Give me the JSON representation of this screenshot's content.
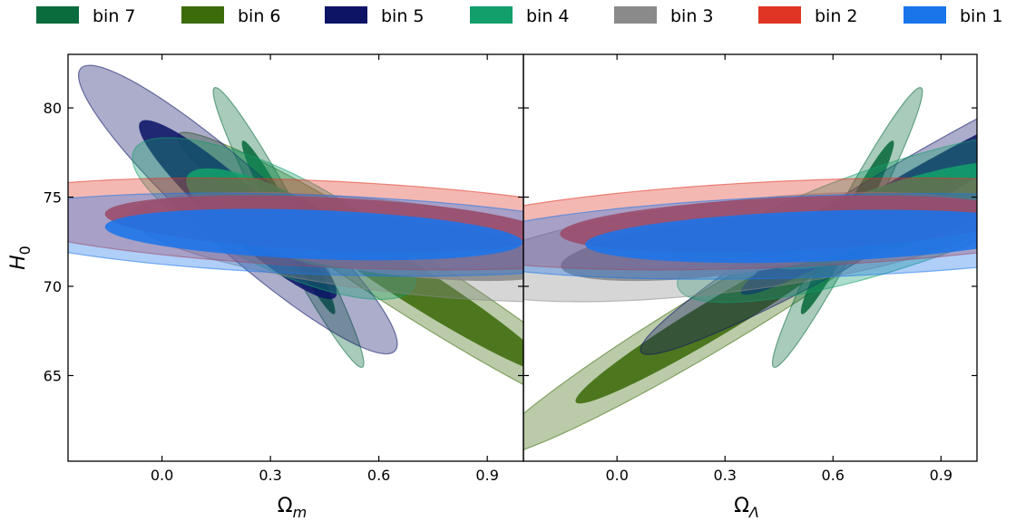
{
  "legend": [
    {
      "label": "bin 7",
      "color": "#0a6b3c"
    },
    {
      "label": "bin 6",
      "color": "#3c6b0a"
    },
    {
      "label": "bin 5",
      "color": "#0d1466"
    },
    {
      "label": "bin 4",
      "color": "#139f6c"
    },
    {
      "label": "bin 3",
      "color": "#8a8a8a"
    },
    {
      "label": "bin 2",
      "color": "#e03524"
    },
    {
      "label": "bin 1",
      "color": "#1a74ea"
    }
  ],
  "chart_data": [
    {
      "type": "contour",
      "panel": "left",
      "xlabel_main": "Ω",
      "xlabel_sub": "m",
      "ylabel_main": "H",
      "ylabel_sub": "0",
      "xlim": [
        -0.26,
        1.0
      ],
      "ylim": [
        60.2,
        83.0
      ],
      "xticks": [
        "0.0",
        "0.3",
        "0.6",
        "0.9"
      ],
      "yticks": [
        "65",
        "70",
        "75",
        "80"
      ],
      "series": [
        {
          "name": "bin 6",
          "color": "#3c6b0a",
          "cx": 0.68,
          "cy": 70.3,
          "sx": 0.26,
          "sy": 3.4,
          "rho": -0.97
        },
        {
          "name": "bin 7",
          "color": "#0a6b3c",
          "cx": 0.35,
          "cy": 73.3,
          "sx": 0.085,
          "sy": 3.2,
          "rho": -0.97
        },
        {
          "name": "bin 5",
          "color": "#0d1466",
          "cx": 0.21,
          "cy": 74.3,
          "sx": 0.18,
          "sy": 3.3,
          "rho": -0.93
        },
        {
          "name": "bin 4",
          "color": "#139f6c",
          "cx": 0.31,
          "cy": 73.8,
          "sx": 0.16,
          "sy": 1.85,
          "rho": -0.75
        },
        {
          "name": "bin 3",
          "color": "#8a8a8a",
          "cx": 0.65,
          "cy": 72.2,
          "sx": 0.3,
          "sy": 1.25,
          "rho": -0.55
        },
        {
          "name": "bin 2",
          "color": "#e03524",
          "cx": 0.45,
          "cy": 73.5,
          "sx": 0.4,
          "sy": 1.05,
          "rho": -0.35
        },
        {
          "name": "bin 1",
          "color": "#1a74ea",
          "cx": 0.42,
          "cy": 72.9,
          "sx": 0.38,
          "sy": 0.95,
          "rho": -0.3
        }
      ]
    },
    {
      "type": "contour",
      "panel": "right",
      "xlabel_main": "Ω",
      "xlabel_sub": "Λ",
      "ylabel_main": "",
      "ylabel_sub": "",
      "xlim": [
        -0.26,
        1.0
      ],
      "ylim": [
        60.2,
        83.0
      ],
      "xticks": [
        "0.0",
        "0.3",
        "0.6",
        "0.9"
      ],
      "yticks": [],
      "series": [
        {
          "name": "bin 6",
          "color": "#3c6b0a",
          "cx": 0.28,
          "cy": 68.3,
          "sx": 0.26,
          "sy": 3.2,
          "rho": 0.97
        },
        {
          "name": "bin 7",
          "color": "#0a6b3c",
          "cx": 0.64,
          "cy": 73.3,
          "sx": 0.085,
          "sy": 3.2,
          "rho": 0.97
        },
        {
          "name": "bin 5",
          "color": "#0d1466",
          "cx": 0.8,
          "cy": 75.0,
          "sx": 0.3,
          "sy": 3.6,
          "rho": 0.97
        },
        {
          "name": "bin 4",
          "color": "#139f6c",
          "cx": 0.78,
          "cy": 74.0,
          "sx": 0.25,
          "sy": 2.0,
          "rho": 0.78
        },
        {
          "name": "bin 3",
          "color": "#8a8a8a",
          "cx": 0.3,
          "cy": 72.2,
          "sx": 0.3,
          "sy": 1.25,
          "rho": 0.55
        },
        {
          "name": "bin 2",
          "color": "#e03524",
          "cx": 0.48,
          "cy": 73.5,
          "sx": 0.42,
          "sy": 1.05,
          "rho": 0.35
        },
        {
          "name": "bin 1",
          "color": "#1a74ea",
          "cx": 0.55,
          "cy": 72.8,
          "sx": 0.42,
          "sy": 0.98,
          "rho": 0.3
        }
      ]
    }
  ]
}
